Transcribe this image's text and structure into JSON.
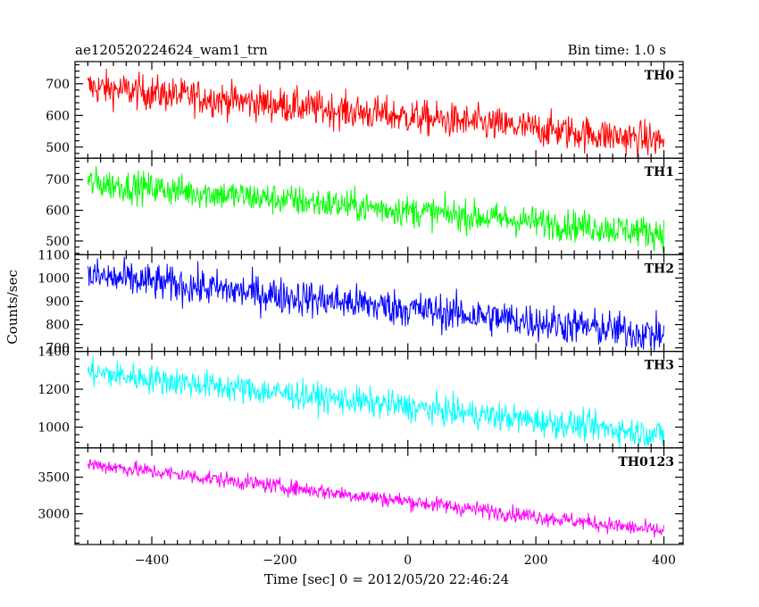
{
  "header": {
    "title": "ae120520224624_wam1_trn",
    "bin_time": "Bin time: 1.0 s"
  },
  "chart_data": {
    "type": "line",
    "title": "ae120520224624_wam1_trn",
    "xlabel": "Time [sec] 0 = 2012/05/20 22:46:24",
    "ylabel": "Counts/sec",
    "xlim": [
      -520,
      430
    ],
    "x_data_range": [
      -500,
      400
    ],
    "x_ticks": [
      -400,
      -200,
      0,
      200,
      400
    ],
    "x_tick_labels": [
      "−400",
      "−200",
      "0",
      "200",
      "400"
    ],
    "grid": false,
    "panels": [
      {
        "name": "TH0",
        "color": "#ff0000",
        "ylim": [
          465,
          770
        ],
        "yticks": [
          500,
          600,
          700
        ],
        "trend_start": 690,
        "trend_end": 520,
        "noise": 28
      },
      {
        "name": "TH1",
        "color": "#00ff00",
        "ylim": [
          455,
          770
        ],
        "yticks": [
          500,
          600,
          700
        ],
        "trend_start": 690,
        "trend_end": 525,
        "noise": 26
      },
      {
        "name": "TH2",
        "color": "#0000ff",
        "ylim": [
          685,
          1100
        ],
        "yticks": [
          700,
          800,
          900,
          1000,
          1100
        ],
        "trend_start": 1010,
        "trend_end": 755,
        "noise": 40
      },
      {
        "name": "TH3",
        "color": "#00ffff",
        "ylim": [
          890,
          1400
        ],
        "yticks": [
          1000,
          1200,
          1400
        ],
        "trend_start": 1290,
        "trend_end": 960,
        "noise": 38
      },
      {
        "name": "TH0123",
        "color": "#ff00ff",
        "ylim": [
          2580,
          3900
        ],
        "yticks": [
          3000,
          3500
        ],
        "trend_start": 3680,
        "trend_end": 2760,
        "noise": 55
      }
    ]
  }
}
